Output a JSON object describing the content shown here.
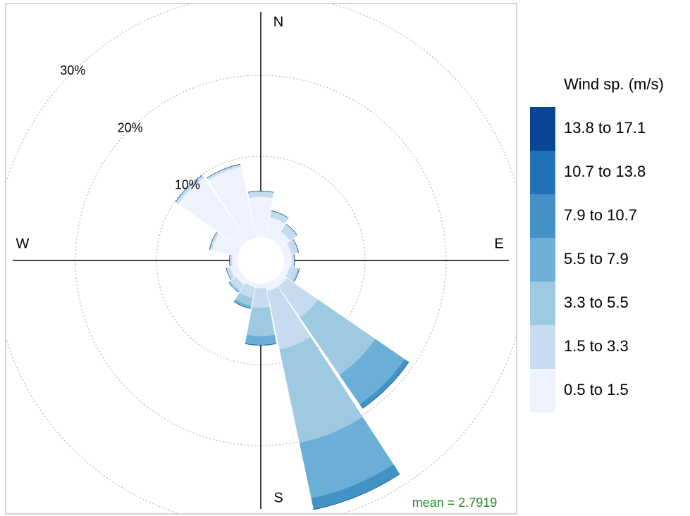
{
  "chart_data": {
    "type": "windrose",
    "angles": [
      0,
      22.5,
      45,
      67.5,
      90,
      112.5,
      135,
      157.5,
      180,
      202.5,
      225,
      247.5,
      270,
      292.5,
      315,
      337.5
    ],
    "axis_labels": [
      {
        "value": 0,
        "label": "N"
      },
      {
        "value": 90,
        "label": "E"
      },
      {
        "value": 180,
        "label": "S"
      },
      {
        "value": 270,
        "label": "W"
      }
    ],
    "rlim": [
      0,
      30
    ],
    "rticks": [
      {
        "value": 10,
        "label": "10%"
      },
      {
        "value": 20,
        "label": "20%"
      },
      {
        "value": 30,
        "label": "30%"
      }
    ],
    "grid": true,
    "legend_title": "Wind sp. (m/s)",
    "annotation": "mean = 2.7919",
    "series": [
      {
        "name": "0.5 to 1.5",
        "color": "#eff3ff",
        "values": [
          5.0,
          2.6,
          1.5,
          1.0,
          1.0,
          0.8,
          1.0,
          1.0,
          0.6,
          0.5,
          0.8,
          1.0,
          0.7,
          3.3,
          9.5,
          9.0
        ]
      },
      {
        "name": "1.5 to 3.3",
        "color": "#c6dbef",
        "values": [
          0.7,
          0.8,
          1.1,
          0.9,
          0.3,
          1.0,
          4.7,
          7.4,
          2.4,
          1.4,
          0.9,
          0.5,
          0.3,
          0.3,
          0.4,
          0.3
        ]
      },
      {
        "name": "3.3 to 5.5",
        "color": "#9ecae1",
        "values": [
          0,
          0,
          0,
          0,
          0,
          0.2,
          8.6,
          11.8,
          3.5,
          1.0,
          0.2,
          0,
          0,
          0,
          0,
          0
        ]
      },
      {
        "name": "5.5 to 7.9",
        "color": "#6baed6",
        "values": [
          0,
          0,
          0,
          0,
          0,
          0,
          4.4,
          7.0,
          1.1,
          0.3,
          0,
          0,
          0,
          0,
          0,
          0
        ]
      },
      {
        "name": "7.9 to 10.7",
        "color": "#4292c6",
        "values": [
          0,
          0,
          0,
          0,
          0,
          0,
          0.6,
          1.4,
          0,
          0,
          0,
          0,
          0,
          0,
          0,
          0
        ]
      },
      {
        "name": "10.7 to 13.8",
        "color": "#2171b5",
        "values": [
          0,
          0,
          0,
          0,
          0,
          0,
          0,
          0,
          0,
          0,
          0,
          0,
          0,
          0,
          0,
          0
        ]
      },
      {
        "name": "13.8 to 17.1",
        "color": "#084594",
        "values": [
          0,
          0,
          0,
          0,
          0,
          0,
          0,
          0,
          0,
          0,
          0,
          0,
          0,
          0,
          0,
          0
        ]
      }
    ]
  }
}
